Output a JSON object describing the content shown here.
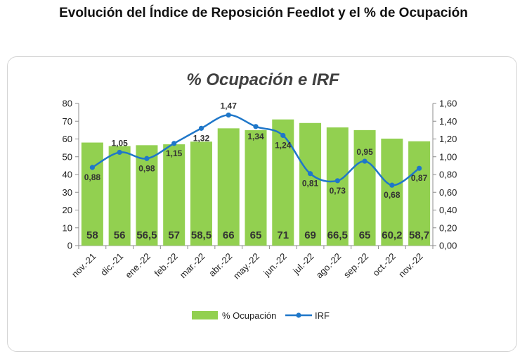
{
  "page": {
    "title": "Evolución del Índice de Reposición Feedlot y el % de Ocupación"
  },
  "chart_data": {
    "type": "bar",
    "title": "% Ocupación e IRF",
    "categories": [
      "nov.-21",
      "dic.-21",
      "ene.-22",
      "feb.-22",
      "mar.-22",
      "abr.-22",
      "may.-22",
      "jun.-22",
      "jul.-22",
      "ago.-22",
      "sep.-22",
      "oct.-22",
      "nov.-22"
    ],
    "series": [
      {
        "name": "% Ocupación",
        "type": "bar",
        "axis": "left",
        "color": "#92d050",
        "values": [
          58,
          56,
          56.5,
          57,
          58.5,
          66,
          65,
          71,
          69,
          66.5,
          65,
          60.2,
          58.7
        ],
        "labels": [
          "58",
          "56",
          "56,5",
          "57",
          "58,5",
          "66",
          "65",
          "71",
          "69",
          "66,5",
          "65",
          "60,2",
          "58,7"
        ]
      },
      {
        "name": "IRF",
        "type": "line",
        "axis": "right",
        "color": "#1f77c9",
        "values": [
          0.88,
          1.05,
          0.98,
          1.15,
          1.32,
          1.47,
          1.34,
          1.24,
          0.81,
          0.73,
          0.95,
          0.68,
          0.87
        ],
        "labels": [
          "0,88",
          "1,05",
          "0,98",
          "1,15",
          "1,32",
          "1,47",
          "1,34",
          "1,24",
          "0,81",
          "0,73",
          "0,95",
          "0,68",
          "0,87"
        ]
      }
    ],
    "y_left": {
      "range": [
        0,
        80
      ],
      "ticks": [
        "0",
        "10",
        "20",
        "30",
        "40",
        "50",
        "60",
        "70",
        "80"
      ]
    },
    "y_right": {
      "range": [
        0,
        1.6
      ],
      "ticks": [
        "0,00",
        "0,20",
        "0,40",
        "0,60",
        "0,80",
        "1,00",
        "1,20",
        "1,40",
        "1,60"
      ]
    },
    "grid": false,
    "legend": {
      "position": "bottom"
    }
  }
}
